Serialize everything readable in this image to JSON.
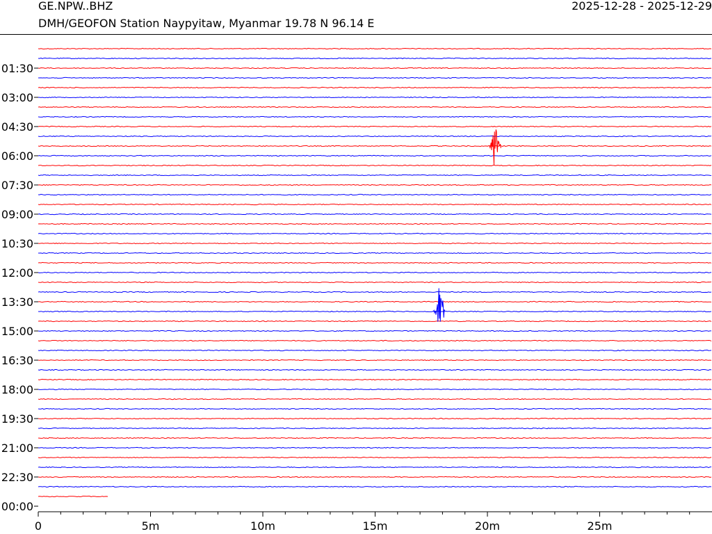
{
  "header": {
    "station_code": "GE.NPW..BHZ",
    "station_description": "DMH/GEOFON Station Naypyitaw, Myanmar  19.78 N 96.14 E",
    "date_range": "2025-12-28 - 2025-12-29"
  },
  "chart_data": {
    "type": "line",
    "title": "GE.NPW..BHZ",
    "subtitle": "DMH/GEOFON Station Naypyitaw, Myanmar  19.78 N 96.14 E",
    "xlabel": "",
    "ylabel": "",
    "xlim": [
      0,
      30
    ],
    "x_tick_labels": [
      "0",
      "5m",
      "10m",
      "15m",
      "20m",
      "25m"
    ],
    "x_tick_values": [
      0,
      5,
      10,
      15,
      20,
      25
    ],
    "x_minor_step": 1,
    "y_tick_labels": [
      "01:30",
      "03:00",
      "04:30",
      "06:00",
      "07:30",
      "09:00",
      "10:30",
      "12:00",
      "13:30",
      "15:00",
      "16:30",
      "18:00",
      "19:30",
      "21:00",
      "22:30",
      "00:00"
    ],
    "trace_interval_minutes": 30,
    "trace_count": 47,
    "series_colors": [
      "#ff0000",
      "#0000ff"
    ],
    "last_trace_end_minute": 3.1,
    "events": [
      {
        "trace_index": 10,
        "start_minute": 20.1,
        "end_minute": 20.6,
        "peak_minute": 20.35,
        "color": "#ff0000"
      },
      {
        "trace_index": 27,
        "start_minute": 17.6,
        "end_minute": 18.1,
        "peak_minute": 17.9,
        "color": "#0000ff"
      }
    ],
    "grid": false,
    "legend": "none"
  }
}
